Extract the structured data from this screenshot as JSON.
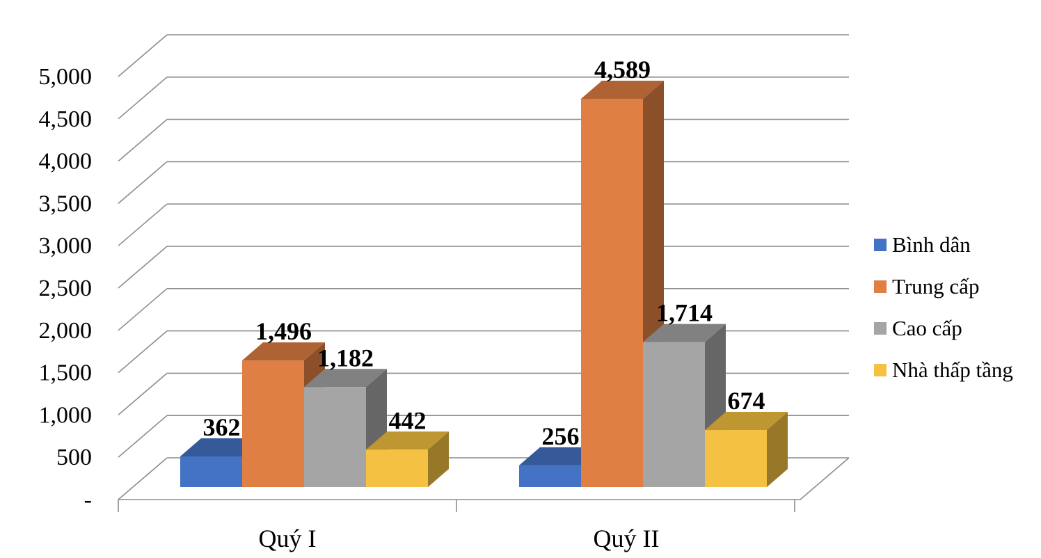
{
  "chart_data": {
    "type": "bar",
    "title": "",
    "xlabel": "",
    "ylabel": "",
    "ylim": [
      0,
      5000
    ],
    "y_ticks": [
      "-",
      "500",
      "1,000",
      "1,500",
      "2,000",
      "2,500",
      "3,000",
      "3,500",
      "4,000",
      "4,500",
      "5,000"
    ],
    "categories": [
      "Quý I",
      "Quý II"
    ],
    "grid": true,
    "style": "3d-clustered-column",
    "legend_position": "right",
    "series": [
      {
        "name": "Bình dân",
        "color": "#4472C4",
        "values": [
          362,
          256
        ],
        "labels": [
          "362",
          "256"
        ]
      },
      {
        "name": "Trung cấp",
        "color": "#E07F43",
        "values": [
          1496,
          4589
        ],
        "labels": [
          "1,496",
          "4,589"
        ]
      },
      {
        "name": "Cao cấp",
        "color": "#A5A5A5",
        "values": [
          1182,
          1714
        ],
        "labels": [
          "1,182",
          "1,714"
        ]
      },
      {
        "name": "Nhà thấp tầng",
        "color": "#F4C142",
        "values": [
          442,
          674
        ],
        "labels": [
          "442",
          "674"
        ]
      }
    ]
  }
}
